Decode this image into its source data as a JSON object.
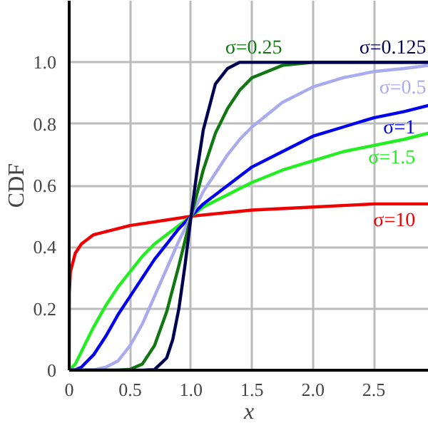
{
  "chart_data": {
    "type": "line",
    "xlabel": "x",
    "ylabel": "CDF",
    "xlim": [
      0,
      2.95
    ],
    "ylim": [
      0,
      1.2
    ],
    "xticks": [
      0,
      0.5,
      {
        "value": 1,
        "label": "1.0"
      },
      1.5,
      {
        "value": 2,
        "label": "2.0"
      },
      2.5
    ],
    "yticks": [
      0,
      0.2,
      0.4,
      0.6,
      0.8,
      {
        "value": 1,
        "label": "1.0"
      }
    ],
    "grid": true,
    "line_style": "solid",
    "marker": "none",
    "series": [
      {
        "name": "σ=0.125",
        "color": "#000050",
        "x": [
          0,
          0.6,
          0.7,
          0.8,
          0.85,
          0.9,
          0.95,
          1,
          1.05,
          1.1,
          1.2,
          1.3,
          1.4,
          1.5,
          2,
          2.95
        ],
        "values": [
          0,
          0,
          0.002,
          0.04,
          0.1,
          0.2,
          0.34,
          0.5,
          0.65,
          0.78,
          0.93,
          0.98,
          1.0,
          1.0,
          1.0,
          1.0
        ]
      },
      {
        "name": "σ=0.25",
        "color": "#117711",
        "x": [
          0,
          0.4,
          0.5,
          0.6,
          0.7,
          0.8,
          0.9,
          1,
          1.1,
          1.2,
          1.3,
          1.4,
          1.5,
          1.75,
          2,
          2.5,
          2.95
        ],
        "values": [
          0,
          0,
          0.003,
          0.02,
          0.08,
          0.19,
          0.34,
          0.5,
          0.65,
          0.77,
          0.85,
          0.91,
          0.95,
          0.99,
          1.0,
          1.0,
          1.0
        ]
      },
      {
        "name": "σ=0.5",
        "color": "#aaaaee",
        "x": [
          0,
          0.1,
          0.2,
          0.3,
          0.4,
          0.5,
          0.6,
          0.7,
          0.8,
          0.9,
          1,
          1.1,
          1.2,
          1.3,
          1.4,
          1.5,
          1.75,
          2,
          2.25,
          2.5,
          2.75,
          2.95
        ],
        "values": [
          0,
          0,
          0.001,
          0.01,
          0.03,
          0.08,
          0.15,
          0.24,
          0.33,
          0.42,
          0.5,
          0.58,
          0.64,
          0.7,
          0.75,
          0.79,
          0.87,
          0.92,
          0.95,
          0.97,
          0.98,
          0.99
        ]
      },
      {
        "name": "σ=1",
        "color": "#0000ee",
        "x": [
          0,
          0.05,
          0.1,
          0.2,
          0.3,
          0.4,
          0.5,
          0.6,
          0.7,
          0.8,
          0.9,
          1,
          1.1,
          1.2,
          1.3,
          1.4,
          1.5,
          1.75,
          2,
          2.25,
          2.5,
          2.75,
          2.95
        ],
        "values": [
          0,
          0.001,
          0.01,
          0.05,
          0.11,
          0.18,
          0.24,
          0.3,
          0.36,
          0.41,
          0.46,
          0.5,
          0.54,
          0.57,
          0.6,
          0.63,
          0.66,
          0.71,
          0.76,
          0.79,
          0.82,
          0.84,
          0.86
        ]
      },
      {
        "name": "σ=1.5",
        "color": "#22ee22",
        "x": [
          0,
          0.05,
          0.1,
          0.2,
          0.3,
          0.4,
          0.5,
          0.6,
          0.7,
          0.8,
          0.9,
          1,
          1.1,
          1.2,
          1.3,
          1.4,
          1.5,
          1.75,
          2,
          2.25,
          2.5,
          2.75,
          2.95
        ],
        "values": [
          0,
          0.02,
          0.06,
          0.14,
          0.21,
          0.27,
          0.32,
          0.37,
          0.41,
          0.44,
          0.47,
          0.5,
          0.53,
          0.55,
          0.57,
          0.59,
          0.61,
          0.65,
          0.68,
          0.71,
          0.73,
          0.75,
          0.77
        ]
      },
      {
        "name": "σ=10",
        "color": "#ee0000",
        "x": [
          0,
          0.001,
          0.01,
          0.05,
          0.1,
          0.2,
          0.5,
          1,
          1.5,
          2,
          2.5,
          2.95
        ],
        "values": [
          0,
          0.25,
          0.32,
          0.38,
          0.41,
          0.44,
          0.47,
          0.5,
          0.52,
          0.53,
          0.54,
          0.54
        ]
      }
    ]
  }
}
